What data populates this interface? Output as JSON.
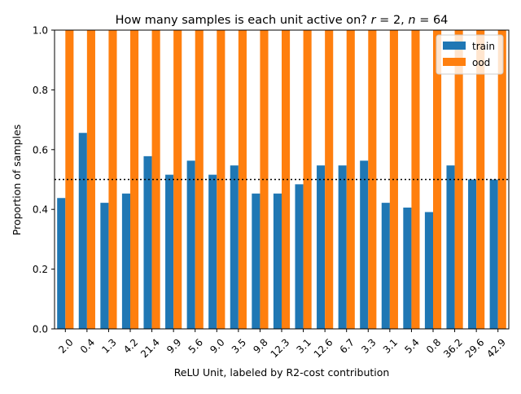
{
  "chart_data": {
    "type": "bar",
    "title": "How many samples is each unit active on? r = 2, n = 64",
    "title_parts": {
      "prefix": "How many samples is each unit active on? ",
      "r_symbol": "r",
      "r_value": " = 2, ",
      "n_symbol": "n",
      "n_value": " = 64"
    },
    "xlabel": "ReLU Unit, labeled by R2-cost contribution",
    "ylabel": "Proportion of samples",
    "categories": [
      "2.0",
      "0.4",
      "1.3",
      "4.2",
      "21.4",
      "9.9",
      "5.6",
      "9.0",
      "3.5",
      "9.8",
      "12.3",
      "3.1",
      "12.6",
      "6.7",
      "3.3",
      "3.1",
      "5.4",
      "0.8",
      "36.2",
      "29.6",
      "42.9"
    ],
    "series": [
      {
        "name": "train",
        "color": "#1f77b4",
        "values": [
          0.438,
          0.656,
          0.422,
          0.453,
          0.578,
          0.516,
          0.563,
          0.516,
          0.547,
          0.453,
          0.453,
          0.484,
          0.547,
          0.547,
          0.563,
          0.422,
          0.406,
          0.391,
          0.547,
          0.5,
          0.5
        ]
      },
      {
        "name": "ood",
        "color": "#ff7f0e",
        "values": [
          1.0,
          1.0,
          1.0,
          1.0,
          1.0,
          1.0,
          1.0,
          1.0,
          1.0,
          1.0,
          1.0,
          1.0,
          1.0,
          1.0,
          1.0,
          1.0,
          1.0,
          1.0,
          1.0,
          1.0,
          1.0
        ]
      }
    ],
    "ylim": [
      0,
      1.0
    ],
    "yticks": [
      0.0,
      0.2,
      0.4,
      0.6,
      0.8,
      1.0
    ],
    "ytick_labels": [
      "0.0",
      "0.2",
      "0.4",
      "0.6",
      "0.8",
      "1.0"
    ],
    "reference_line": {
      "y": 0.5,
      "style": "dotted",
      "color": "#000000"
    },
    "legend": {
      "placement": "top-right",
      "entries": [
        "train",
        "ood"
      ]
    },
    "grid": false
  }
}
